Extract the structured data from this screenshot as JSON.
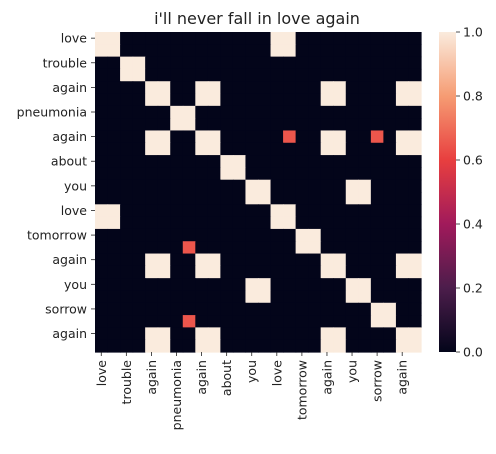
{
  "chart_data": {
    "type": "heatmap",
    "title": "i'll never fall in love again",
    "row_labels": [
      "love",
      "trouble",
      "again",
      "pneumonia",
      "again",
      "about",
      "you",
      "love",
      "tomorrow",
      "again",
      "you",
      "sorrow",
      "again"
    ],
    "col_labels": [
      "love",
      "trouble",
      "again",
      "pneumonia",
      "again",
      "about",
      "you",
      "love",
      "tomorrow",
      "again",
      "you",
      "sorrow",
      "again"
    ],
    "tokens": [
      "love",
      "love",
      "trouble",
      "trouble",
      "again",
      "again",
      "pneumonia",
      "pneumonia",
      "again",
      "again",
      "about",
      "about",
      "you",
      "you",
      "love",
      "love",
      "tomorrow",
      "tomorrow",
      "again",
      "again",
      "you",
      "you",
      "sorrow",
      "sorrow",
      "again",
      "again"
    ],
    "cell_overrides": [
      {
        "row": 8,
        "col": 15,
        "value": 0.65
      },
      {
        "row": 8,
        "col": 22,
        "value": 0.65
      },
      {
        "row": 17,
        "col": 7,
        "value": 0.65
      },
      {
        "row": 23,
        "col": 7,
        "value": 0.65
      }
    ],
    "vmin": 0,
    "vmax": 1,
    "colorbar_ticks": [
      "0.0",
      "0.2",
      "0.4",
      "0.6",
      "0.8",
      "1.0"
    ],
    "colormap": "rocket",
    "colormap_stops": [
      "#03051a",
      "#4c1d4b",
      "#a11a5b",
      "#e83f3f",
      "#f69c73",
      "#faebdd"
    ]
  }
}
